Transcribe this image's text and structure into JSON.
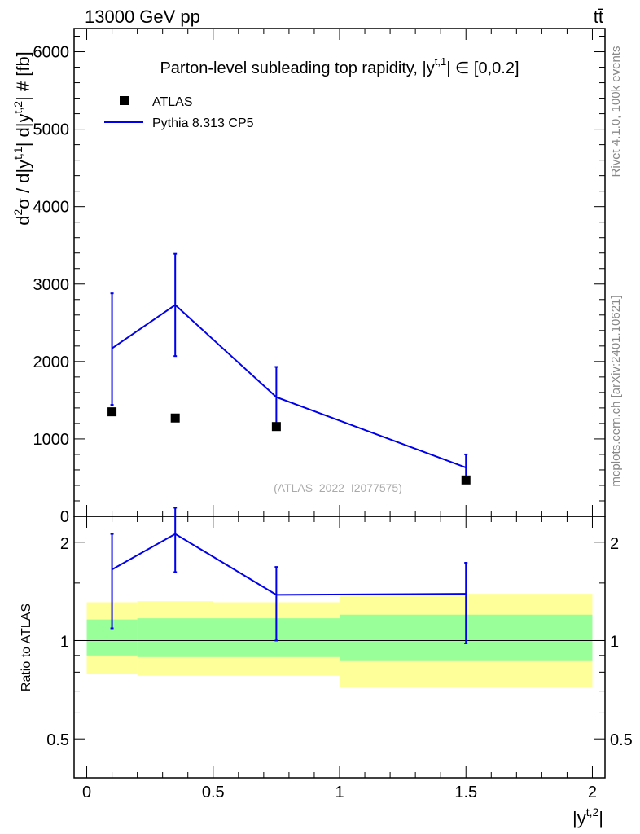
{
  "header": {
    "energy_label": "13000 GeV pp",
    "process_label": "tt̄"
  },
  "side_text": {
    "rivet": "Rivet 4.1.0,  100k events",
    "mcplots": "mcplots.cern.ch [arXiv:2401.10621]"
  },
  "chart_data": [
    {
      "type": "scatter",
      "panel": "main",
      "title": "Parton-level subleading top rapidity, |y^{t,1}| ∈ [0,0.2]",
      "title_parts": {
        "main": "Parton-level subleading top rapidity, |y",
        "sup": "t,1",
        "tail": "| ∈ [0,0.2]"
      },
      "ylabel": "d²σ / d|y^{t,1}| d|y^{t,2}| # [fb]",
      "ylabel_parts": {
        "p1": "d",
        "s1": "2",
        "p2": "σ / d|y",
        "s2": "t,1",
        "p3": "| d|y",
        "s3": "t,2",
        "p4": "| # [fb]"
      },
      "watermark": "(ATLAS_2022_I2077575)",
      "xlim": [
        -0.05,
        2.05
      ],
      "ylim": [
        0,
        6300
      ],
      "yticks": [
        0,
        1000,
        2000,
        3000,
        4000,
        5000,
        6000
      ],
      "grid": false,
      "legend_position": "top-left",
      "series": [
        {
          "name": "ATLAS",
          "style": "markers",
          "color": "#000000",
          "x": [
            0.1,
            0.35,
            0.75,
            1.5
          ],
          "y": [
            1350,
            1270,
            1160,
            470
          ]
        },
        {
          "name": "Pythia 8.313 CP5",
          "style": "line",
          "color": "#0000ee",
          "x": [
            0.1,
            0.35,
            0.75,
            1.5
          ],
          "y": [
            2170,
            2730,
            1540,
            630
          ],
          "yerr_lo": [
            1440,
            2070,
            1170,
            470
          ],
          "yerr_hi": [
            2880,
            3390,
            1930,
            800
          ]
        }
      ]
    },
    {
      "type": "line",
      "panel": "ratio",
      "ylabel": "Ratio to ATLAS",
      "xlabel": "|y^{t,2}|",
      "xlabel_parts": {
        "main": "|y",
        "sup": "t,2",
        "tail": "|"
      },
      "xlim": [
        -0.05,
        2.05
      ],
      "ylim_log": [
        0.38,
        2.4
      ],
      "xticks": [
        0,
        0.5,
        1,
        1.5,
        2
      ],
      "xtick_labels": [
        "0",
        "0.5",
        "1",
        "1.5",
        "2"
      ],
      "yticks": [
        0.5,
        1,
        2
      ],
      "ytick_labels": [
        "0.5",
        "1",
        "2"
      ],
      "bins": [
        [
          0,
          0.2
        ],
        [
          0.2,
          0.5
        ],
        [
          0.5,
          1.0
        ],
        [
          1.0,
          2.0
        ]
      ],
      "band_yellow": {
        "color": "#ffff99",
        "lo": [
          0.79,
          0.78,
          0.78,
          0.72
        ],
        "hi": [
          1.31,
          1.32,
          1.31,
          1.39
        ]
      },
      "band_green": {
        "color": "#99ff99",
        "lo": [
          0.9,
          0.89,
          0.89,
          0.87
        ],
        "hi": [
          1.16,
          1.17,
          1.17,
          1.2
        ]
      },
      "series": [
        {
          "name": "Pythia 8.313 CP5",
          "color": "#0000ee",
          "x": [
            0.1,
            0.35,
            0.75,
            1.5
          ],
          "y": [
            1.65,
            2.12,
            1.38,
            1.39
          ],
          "yerr_lo": [
            1.09,
            1.62,
            1.0,
            0.98
          ],
          "yerr_hi": [
            2.12,
            2.55,
            1.68,
            1.73
          ]
        }
      ]
    }
  ]
}
